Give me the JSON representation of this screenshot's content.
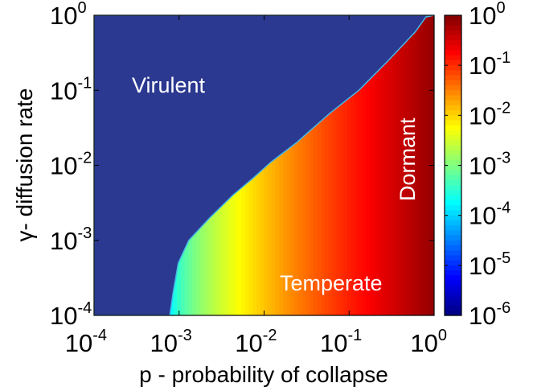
{
  "chart_data": {
    "type": "heatmap",
    "x_scale": "log",
    "y_scale": "log",
    "xlabel": "p - probability of collapse",
    "ylabel_symbol": "γ",
    "ylabel": "- diffusion rate",
    "xlim": [
      0.0001,
      1
    ],
    "ylim": [
      0.0001,
      1
    ],
    "x_ticks": [
      {
        "base": "10",
        "exp": "-4",
        "value": 0.0001
      },
      {
        "base": "10",
        "exp": "-3",
        "value": 0.001
      },
      {
        "base": "10",
        "exp": "-2",
        "value": 0.01
      },
      {
        "base": "10",
        "exp": "-1",
        "value": 0.1
      },
      {
        "base": "10",
        "exp": "0",
        "value": 1
      }
    ],
    "y_ticks": [
      {
        "base": "10",
        "exp": "-4",
        "value": 0.0001
      },
      {
        "base": "10",
        "exp": "-3",
        "value": 0.001
      },
      {
        "base": "10",
        "exp": "-2",
        "value": 0.01
      },
      {
        "base": "10",
        "exp": "-1",
        "value": 0.1
      },
      {
        "base": "10",
        "exp": "0",
        "value": 1
      }
    ],
    "colorbar": {
      "scale": "log",
      "range": [
        1e-06,
        1
      ],
      "colormap": "jet",
      "ticks": [
        {
          "base": "10",
          "exp": "0",
          "value": 1
        },
        {
          "base": "10",
          "exp": "-1",
          "value": 0.1
        },
        {
          "base": "10",
          "exp": "-2",
          "value": 0.01
        },
        {
          "base": "10",
          "exp": "-3",
          "value": 0.001
        },
        {
          "base": "10",
          "exp": "-4",
          "value": 0.0001
        },
        {
          "base": "10",
          "exp": "-5",
          "value": 1e-05
        },
        {
          "base": "10",
          "exp": "-6",
          "value": 1e-06
        }
      ]
    },
    "boundary_points": [
      {
        "p": 0.00078,
        "gamma": 0.0001
      },
      {
        "p": 0.00085,
        "gamma": 0.0002
      },
      {
        "p": 0.00098,
        "gamma": 0.0005
      },
      {
        "p": 0.0013,
        "gamma": 0.001
      },
      {
        "p": 0.0023,
        "gamma": 0.002
      },
      {
        "p": 0.0043,
        "gamma": 0.004
      },
      {
        "p": 0.0077,
        "gamma": 0.007
      },
      {
        "p": 0.012,
        "gamma": 0.011
      },
      {
        "p": 0.024,
        "gamma": 0.02
      },
      {
        "p": 0.06,
        "gamma": 0.05
      },
      {
        "p": 0.13,
        "gamma": 0.1
      },
      {
        "p": 0.29,
        "gamma": 0.25
      },
      {
        "p": 0.6,
        "gamma": 0.6
      },
      {
        "p": 0.8,
        "gamma": 0.95
      }
    ],
    "annotations": [
      "Virulent",
      "Dormant",
      "Temperate"
    ]
  },
  "colors": {
    "virulent_region": "#2b3990",
    "dormant_edge": "#7a0f0f",
    "text_on_plot": "#ffffff"
  }
}
